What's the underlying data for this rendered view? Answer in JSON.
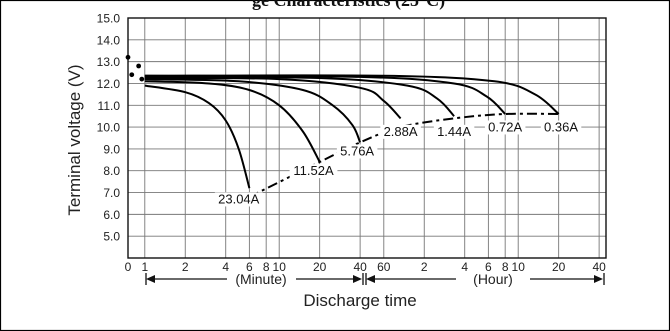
{
  "header": {
    "title_fragment": "ge Characteristics (25°C)"
  },
  "chart_data": {
    "type": "line",
    "title": "",
    "xlabel": "Discharge time",
    "ylabel": "Terminal voltage (V)",
    "ylim": [
      4.0,
      15.0
    ],
    "y_ticks": [
      "15.0",
      "14.0",
      "13.0",
      "12.0",
      "11.0",
      "10.0",
      "9.0",
      "8.0",
      "7.0",
      "6.0",
      "5.0"
    ],
    "x_scale": "log, minutes then hours",
    "x_ticks": [
      {
        "label": "0",
        "minutes": 0.75
      },
      {
        "label": "1",
        "minutes": 1
      },
      {
        "label": "2",
        "minutes": 2
      },
      {
        "label": "4",
        "minutes": 4
      },
      {
        "label": "6",
        "minutes": 6
      },
      {
        "label": "8",
        "minutes": 8
      },
      {
        "label": "10",
        "minutes": 10
      },
      {
        "label": "20",
        "minutes": 20
      },
      {
        "label": "40",
        "minutes": 40
      },
      {
        "label": "60",
        "minutes": 60
      },
      {
        "label": "2",
        "minutes": 120
      },
      {
        "label": "4",
        "minutes": 240
      },
      {
        "label": "6",
        "minutes": 360
      },
      {
        "label": "8",
        "minutes": 480
      },
      {
        "label": "10",
        "minutes": 600
      },
      {
        "label": "20",
        "minutes": 1200
      },
      {
        "label": "40",
        "minutes": 2400
      }
    ],
    "x_range_minutes": [
      0.75,
      2700
    ],
    "unit_labels": {
      "minute": "(Minute)",
      "hour": "(Hour)"
    },
    "grid": true,
    "series": [
      {
        "name": "23.04A",
        "points": [
          [
            1,
            11.9
          ],
          [
            2,
            11.6
          ],
          [
            3,
            11.1
          ],
          [
            4,
            10.3
          ],
          [
            5,
            9.0
          ],
          [
            6,
            7.2
          ]
        ]
      },
      {
        "name": "11.52A",
        "points": [
          [
            1,
            12.1
          ],
          [
            3,
            12.0
          ],
          [
            6,
            11.7
          ],
          [
            10,
            11.0
          ],
          [
            15,
            9.8
          ],
          [
            20,
            8.4
          ]
        ]
      },
      {
        "name": "5.76A",
        "points": [
          [
            1,
            12.2
          ],
          [
            5,
            12.1
          ],
          [
            15,
            11.7
          ],
          [
            25,
            11.0
          ],
          [
            35,
            10.1
          ],
          [
            40,
            9.3
          ]
        ]
      },
      {
        "name": "2.88A",
        "points": [
          [
            1,
            12.25
          ],
          [
            10,
            12.2
          ],
          [
            40,
            11.8
          ],
          [
            60,
            11.2
          ],
          [
            80,
            10.4
          ]
        ]
      },
      {
        "name": "1.44A",
        "points": [
          [
            1,
            12.3
          ],
          [
            20,
            12.25
          ],
          [
            90,
            11.9
          ],
          [
            150,
            11.3
          ],
          [
            200,
            10.5
          ]
        ]
      },
      {
        "name": "0.72A",
        "points": [
          [
            1,
            12.35
          ],
          [
            40,
            12.3
          ],
          [
            200,
            12.0
          ],
          [
            350,
            11.4
          ],
          [
            480,
            10.6
          ]
        ]
      },
      {
        "name": "0.36A",
        "points": [
          [
            1,
            12.35
          ],
          [
            60,
            12.35
          ],
          [
            400,
            12.1
          ],
          [
            800,
            11.5
          ],
          [
            1200,
            10.6
          ]
        ]
      }
    ],
    "initial_voltage_marks": [
      {
        "minutes": 0.75,
        "v": 13.2
      },
      {
        "minutes": 0.9,
        "v": 12.8
      },
      {
        "minutes": 0.8,
        "v": 12.4
      },
      {
        "minutes": 0.95,
        "v": 12.2
      }
    ],
    "end_voltage_line": {
      "style": "dash-dot",
      "points": [
        [
          6,
          6.8
        ],
        [
          20,
          8.4
        ],
        [
          40,
          9.3
        ],
        [
          80,
          10.0
        ],
        [
          200,
          10.4
        ],
        [
          480,
          10.6
        ],
        [
          1200,
          10.6
        ]
      ]
    },
    "labels": [
      {
        "text": "23.04A",
        "minutes": 5.0,
        "v": 6.5
      },
      {
        "text": "11.52A",
        "minutes": 18.0,
        "v": 7.8
      },
      {
        "text": "5.76A",
        "minutes": 38.0,
        "v": 8.7
      },
      {
        "text": "2.88A",
        "minutes": 80.0,
        "v": 9.6
      },
      {
        "text": "1.44A",
        "minutes": 200.0,
        "v": 9.6
      },
      {
        "text": "0.72A",
        "minutes": 480.0,
        "v": 9.8
      },
      {
        "text": "0.36A",
        "minutes": 1250.0,
        "v": 9.8
      }
    ]
  }
}
